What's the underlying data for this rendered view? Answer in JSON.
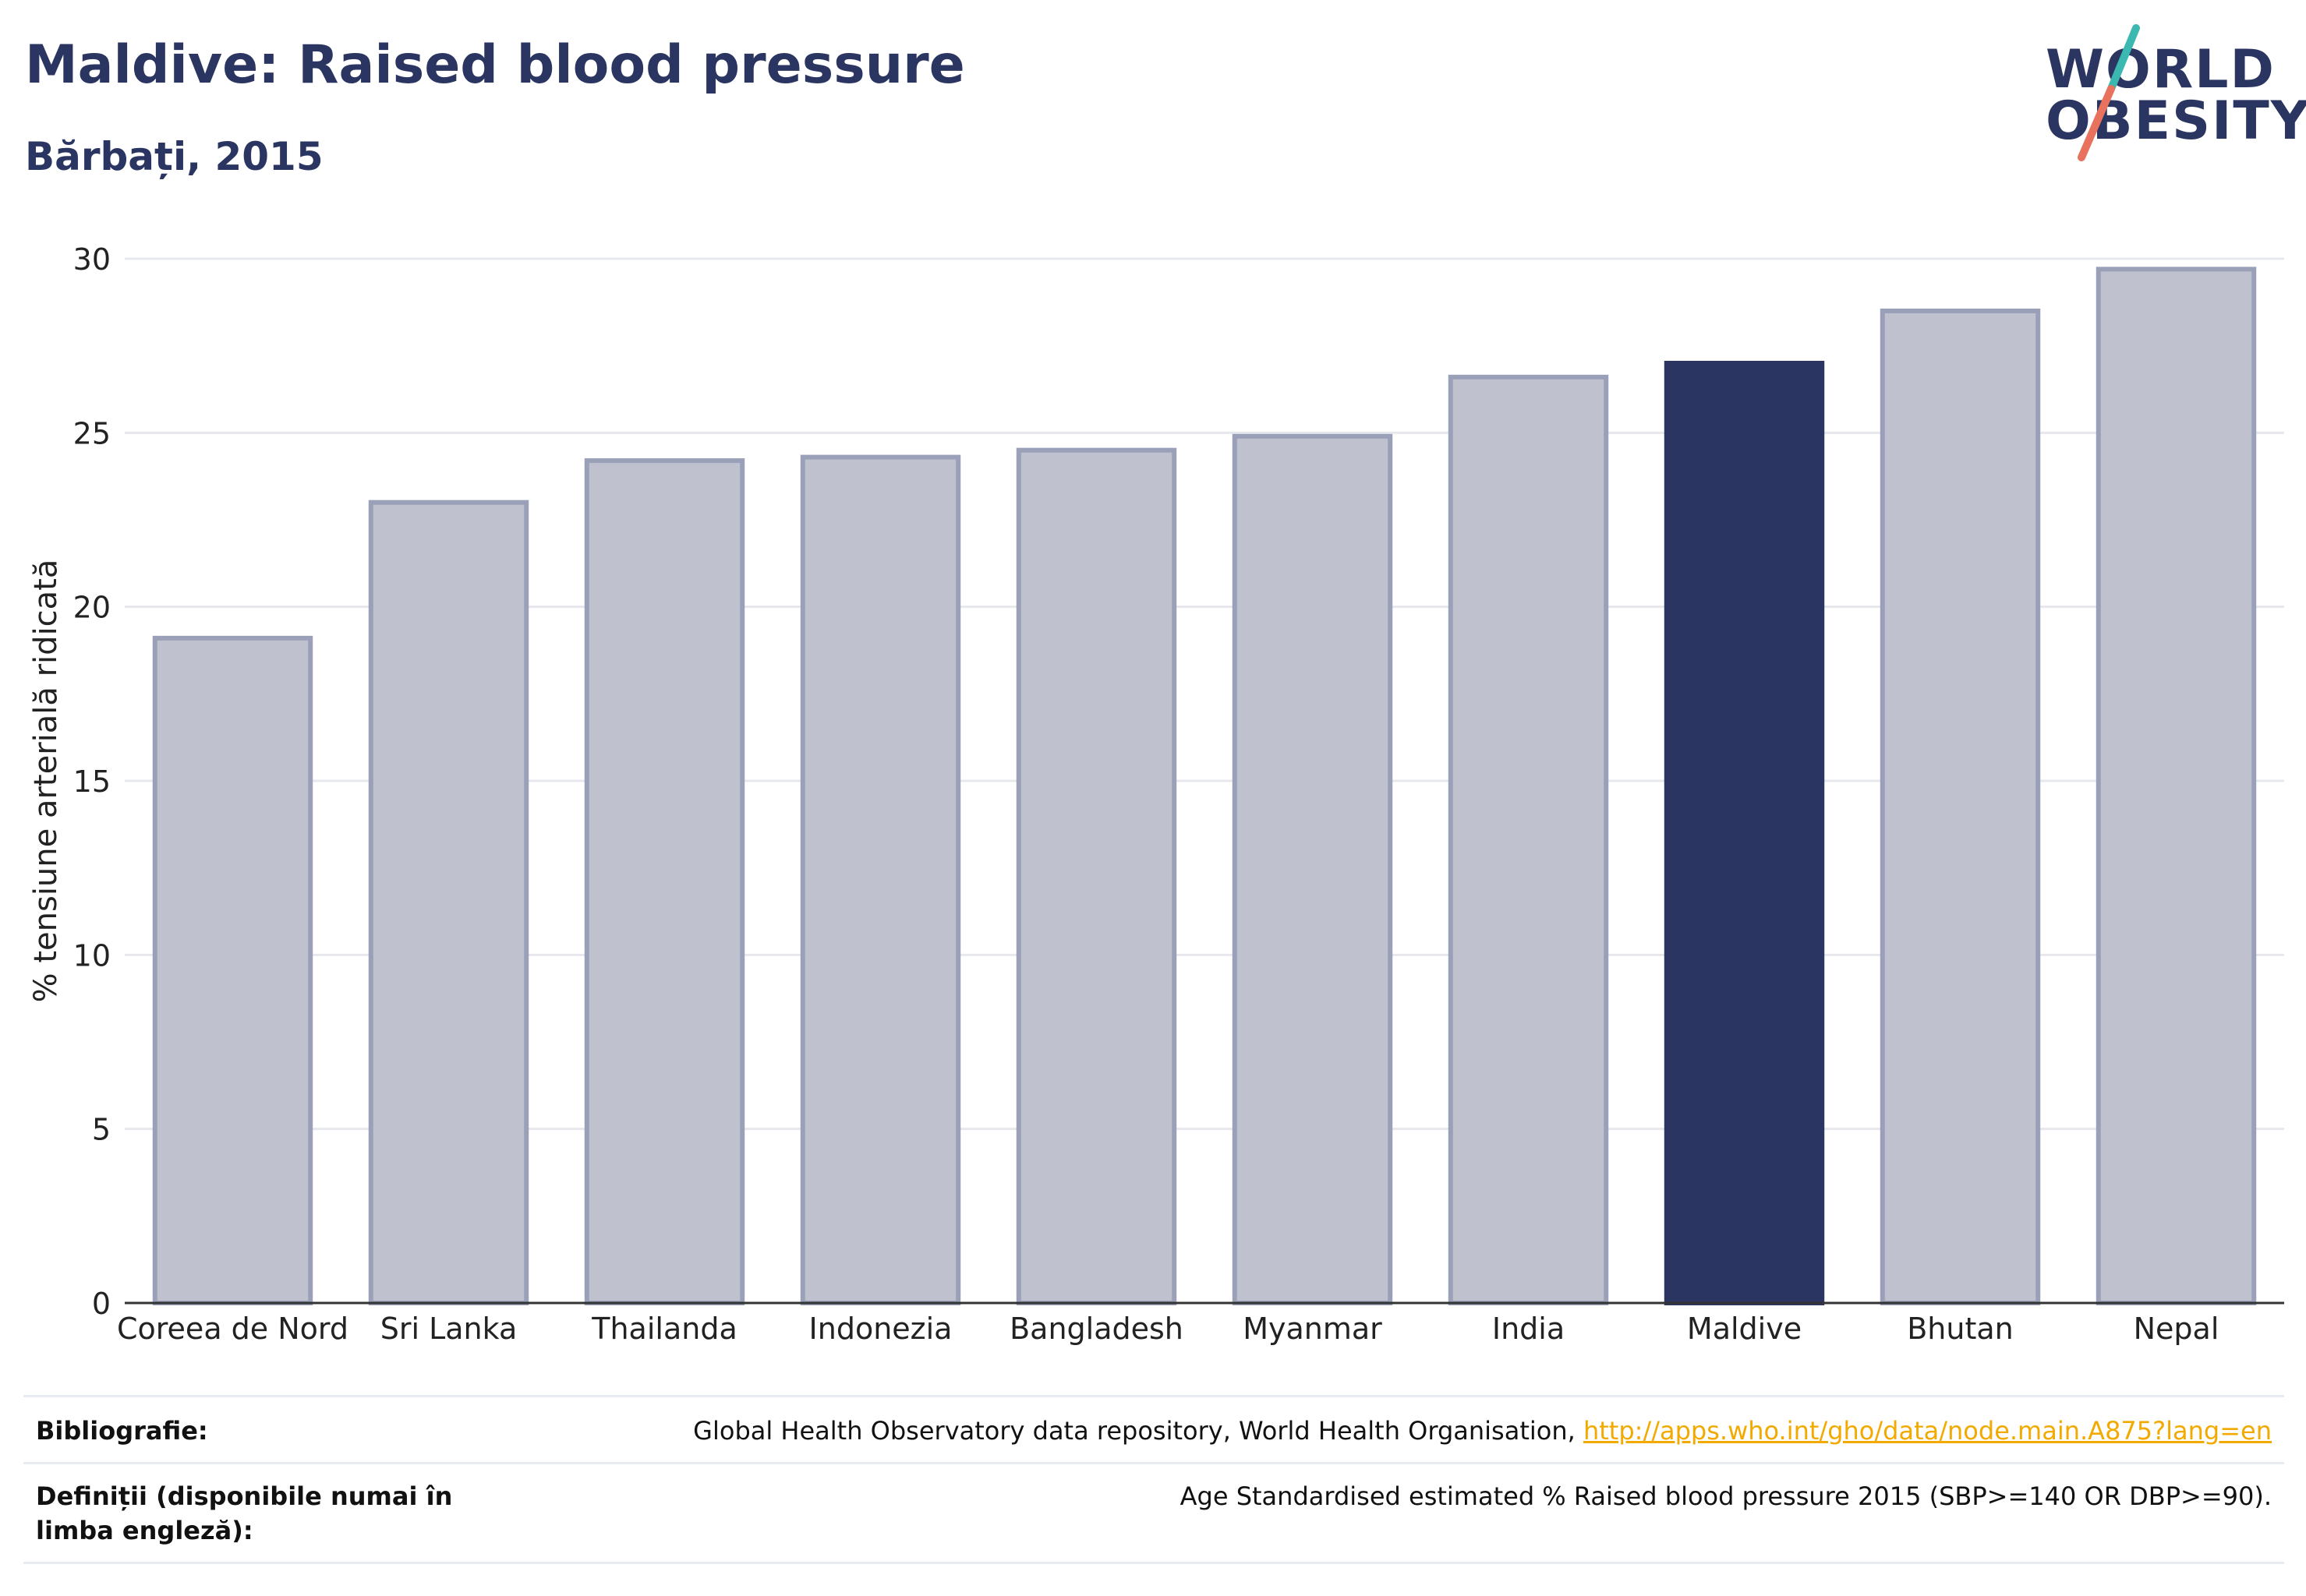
{
  "header": {
    "title": "Maldive: Raised blood pressure",
    "subtitle": "Bărbați, 2015"
  },
  "logo": {
    "line1": "WORLD",
    "line2": "OBESITY",
    "colors": {
      "text": "#2b3561",
      "slash_top": "#3bb8b0",
      "slash_bottom": "#e8725e"
    }
  },
  "chart_data": {
    "type": "bar",
    "categories": [
      "Coreea de Nord",
      "Sri Lanka",
      "Thailanda",
      "Indonezia",
      "Bangladesh",
      "Myanmar",
      "India",
      "Maldive",
      "Bhutan",
      "Nepal"
    ],
    "values": [
      19.1,
      23.0,
      24.2,
      24.3,
      24.5,
      24.9,
      26.6,
      27.0,
      28.5,
      29.7
    ],
    "highlight": "Maldive",
    "ylabel": "% tensiune arterială ridicată",
    "ylim": [
      0,
      30
    ],
    "yticks": [
      0,
      5,
      10,
      15,
      20,
      25,
      30
    ],
    "grid": true,
    "colors": {
      "bar": "#bfc1ce",
      "bar_border": "#9aa0b8",
      "highlight": "#2b3561",
      "grid": "#e6e8ee",
      "axis": "#333333"
    }
  },
  "footer": {
    "source_label": "Bibliografie:",
    "source_text": "Global Health Observatory data repository, World Health Organisation, ",
    "source_link": "http://apps.who.int/gho/data/node.main.A875?lang=en",
    "definition_label": "Definiții (disponibile numai în limba engleză):",
    "definition_text": "Age Standardised estimated % Raised blood pressure 2015 (SBP>=140 OR DBP>=90)."
  }
}
